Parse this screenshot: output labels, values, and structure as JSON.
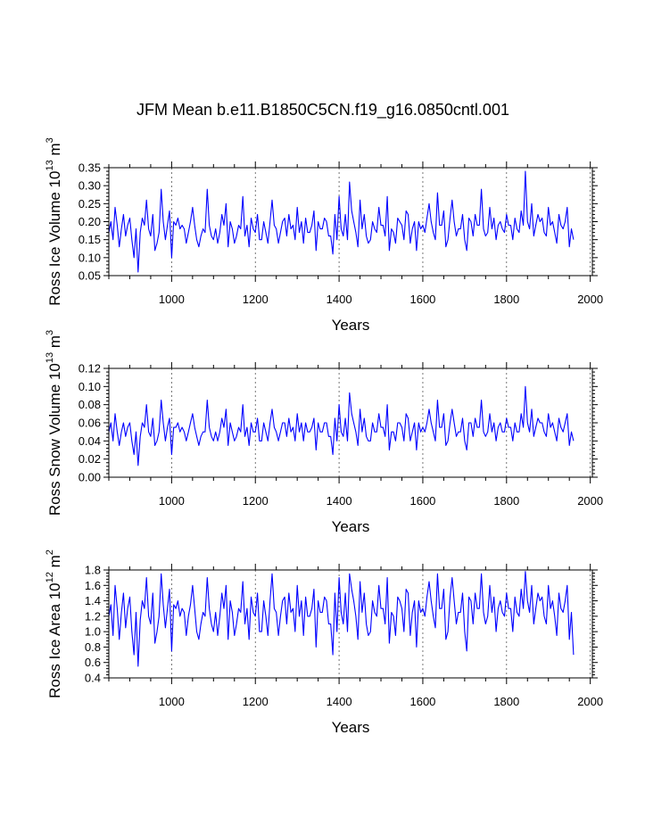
{
  "title": "JFM Mean b.e11.B1850C5CN.f19_g16.0850cntl.001",
  "chart_data": [
    {
      "type": "line",
      "panel": "ice-volume",
      "title": "JFM Mean b.e11.B1850C5CN.f19_g16.0850cntl.001",
      "xlabel": "Years",
      "ylabel_main": "Ross Ice Volume 10",
      "ylabel_exp": "13",
      "ylabel_unit": " m",
      "ylabel_unit_exp": "3",
      "xlim": [
        850,
        2005
      ],
      "ylim": [
        0.05,
        0.35
      ],
      "xticks": [
        1000,
        1200,
        1400,
        1600,
        1800,
        2000
      ],
      "xtick_labels": [
        "1000",
        "1200",
        "1400",
        "1600",
        "1800",
        "2000"
      ],
      "yticks": [
        0.05,
        0.1,
        0.15,
        0.2,
        0.25,
        0.3,
        0.35
      ],
      "ytick_labels": [
        "0.05",
        "0.10",
        "0.15",
        "0.20",
        "0.25",
        "0.30",
        "0.35"
      ],
      "x_grid": [
        1000,
        1200,
        1400,
        1600,
        1800,
        2000
      ],
      "series": [
        {
          "name": "Ross Ice Volume",
          "color": "#0000ff",
          "x_start": 850,
          "x_step": 5,
          "values": [
            0.17,
            0.2,
            0.15,
            0.24,
            0.19,
            0.13,
            0.18,
            0.22,
            0.16,
            0.19,
            0.21,
            0.15,
            0.1,
            0.18,
            0.06,
            0.17,
            0.21,
            0.19,
            0.26,
            0.18,
            0.16,
            0.22,
            0.12,
            0.14,
            0.17,
            0.29,
            0.2,
            0.15,
            0.19,
            0.23,
            0.1,
            0.2,
            0.19,
            0.21,
            0.18,
            0.19,
            0.18,
            0.14,
            0.17,
            0.2,
            0.24,
            0.19,
            0.15,
            0.13,
            0.16,
            0.18,
            0.17,
            0.29,
            0.19,
            0.16,
            0.15,
            0.18,
            0.14,
            0.17,
            0.22,
            0.19,
            0.25,
            0.13,
            0.2,
            0.18,
            0.14,
            0.16,
            0.19,
            0.18,
            0.27,
            0.16,
            0.19,
            0.13,
            0.21,
            0.18,
            0.17,
            0.22,
            0.15,
            0.15,
            0.2,
            0.17,
            0.14,
            0.2,
            0.26,
            0.19,
            0.18,
            0.14,
            0.17,
            0.2,
            0.21,
            0.16,
            0.22,
            0.18,
            0.19,
            0.15,
            0.24,
            0.17,
            0.2,
            0.14,
            0.21,
            0.17,
            0.17,
            0.19,
            0.23,
            0.12,
            0.2,
            0.18,
            0.18,
            0.21,
            0.2,
            0.16,
            0.16,
            0.11,
            0.22,
            0.15,
            0.27,
            0.18,
            0.16,
            0.22,
            0.15,
            0.31,
            0.23,
            0.2,
            0.17,
            0.13,
            0.26,
            0.18,
            0.22,
            0.16,
            0.14,
            0.15,
            0.2,
            0.18,
            0.17,
            0.24,
            0.19,
            0.19,
            0.16,
            0.27,
            0.12,
            0.18,
            0.17,
            0.14,
            0.21,
            0.2,
            0.19,
            0.15,
            0.23,
            0.22,
            0.14,
            0.18,
            0.2,
            0.12,
            0.2,
            0.18,
            0.19,
            0.17,
            0.21,
            0.25,
            0.2,
            0.17,
            0.15,
            0.28,
            0.19,
            0.19,
            0.23,
            0.13,
            0.15,
            0.21,
            0.26,
            0.2,
            0.16,
            0.18,
            0.18,
            0.22,
            0.15,
            0.12,
            0.21,
            0.2,
            0.16,
            0.22,
            0.19,
            0.19,
            0.29,
            0.18,
            0.16,
            0.17,
            0.24,
            0.18,
            0.21,
            0.15,
            0.19,
            0.2,
            0.18,
            0.17,
            0.22,
            0.19,
            0.19,
            0.15,
            0.21,
            0.18,
            0.17,
            0.23,
            0.19,
            0.34,
            0.2,
            0.18,
            0.25,
            0.16,
            0.19,
            0.22,
            0.2,
            0.21,
            0.17,
            0.16,
            0.24,
            0.19,
            0.2,
            0.17,
            0.14,
            0.22,
            0.19,
            0.18,
            0.2,
            0.24,
            0.13,
            0.18,
            0.15
          ]
        }
      ]
    },
    {
      "type": "line",
      "panel": "snow-volume",
      "xlabel": "Years",
      "ylabel_main": "Ross Snow Volume 10",
      "ylabel_exp": "13",
      "ylabel_unit": " m",
      "ylabel_unit_exp": "3",
      "xlim": [
        850,
        2005
      ],
      "ylim": [
        0.0,
        0.12
      ],
      "xticks": [
        1000,
        1200,
        1400,
        1600,
        1800,
        2000
      ],
      "xtick_labels": [
        "1000",
        "1200",
        "1400",
        "1600",
        "1800",
        "2000"
      ],
      "yticks": [
        0.0,
        0.02,
        0.04,
        0.06,
        0.08,
        0.1,
        0.12
      ],
      "ytick_labels": [
        "0.00",
        "0.02",
        "0.04",
        "0.06",
        "0.08",
        "0.10",
        "0.12"
      ],
      "x_grid": [
        1000,
        1200,
        1400,
        1600,
        1800,
        2000
      ],
      "series": [
        {
          "name": "Ross Snow Volume",
          "color": "#0000ff",
          "x_start": 850,
          "x_step": 5,
          "values": [
            0.05,
            0.06,
            0.04,
            0.07,
            0.05,
            0.035,
            0.05,
            0.06,
            0.045,
            0.055,
            0.06,
            0.04,
            0.025,
            0.05,
            0.013,
            0.045,
            0.06,
            0.055,
            0.08,
            0.05,
            0.045,
            0.065,
            0.035,
            0.04,
            0.05,
            0.085,
            0.06,
            0.04,
            0.055,
            0.065,
            0.025,
            0.055,
            0.055,
            0.06,
            0.05,
            0.055,
            0.05,
            0.04,
            0.05,
            0.06,
            0.07,
            0.055,
            0.045,
            0.035,
            0.045,
            0.05,
            0.05,
            0.085,
            0.055,
            0.045,
            0.04,
            0.05,
            0.04,
            0.05,
            0.065,
            0.055,
            0.075,
            0.035,
            0.06,
            0.05,
            0.04,
            0.045,
            0.055,
            0.05,
            0.08,
            0.045,
            0.055,
            0.035,
            0.06,
            0.05,
            0.05,
            0.065,
            0.04,
            0.04,
            0.06,
            0.05,
            0.04,
            0.06,
            0.075,
            0.055,
            0.05,
            0.04,
            0.05,
            0.06,
            0.06,
            0.045,
            0.065,
            0.05,
            0.055,
            0.04,
            0.07,
            0.05,
            0.06,
            0.04,
            0.06,
            0.05,
            0.05,
            0.055,
            0.065,
            0.03,
            0.06,
            0.05,
            0.05,
            0.06,
            0.06,
            0.045,
            0.045,
            0.025,
            0.065,
            0.04,
            0.08,
            0.05,
            0.045,
            0.065,
            0.04,
            0.093,
            0.07,
            0.06,
            0.05,
            0.035,
            0.075,
            0.05,
            0.065,
            0.045,
            0.04,
            0.04,
            0.06,
            0.05,
            0.05,
            0.07,
            0.055,
            0.055,
            0.045,
            0.08,
            0.03,
            0.05,
            0.05,
            0.04,
            0.06,
            0.06,
            0.055,
            0.04,
            0.07,
            0.065,
            0.04,
            0.05,
            0.06,
            0.03,
            0.06,
            0.05,
            0.055,
            0.05,
            0.06,
            0.075,
            0.06,
            0.05,
            0.04,
            0.085,
            0.055,
            0.055,
            0.07,
            0.035,
            0.04,
            0.06,
            0.075,
            0.06,
            0.045,
            0.05,
            0.05,
            0.065,
            0.04,
            0.03,
            0.06,
            0.06,
            0.045,
            0.065,
            0.055,
            0.055,
            0.085,
            0.05,
            0.045,
            0.05,
            0.07,
            0.05,
            0.06,
            0.04,
            0.055,
            0.06,
            0.05,
            0.05,
            0.065,
            0.055,
            0.055,
            0.04,
            0.06,
            0.05,
            0.05,
            0.07,
            0.055,
            0.1,
            0.06,
            0.05,
            0.075,
            0.045,
            0.055,
            0.065,
            0.06,
            0.06,
            0.05,
            0.045,
            0.07,
            0.055,
            0.06,
            0.05,
            0.04,
            0.065,
            0.055,
            0.05,
            0.06,
            0.07,
            0.035,
            0.05,
            0.04
          ]
        }
      ]
    },
    {
      "type": "line",
      "panel": "ice-area",
      "xlabel": "Years",
      "ylabel_main": "Ross Ice Area 10",
      "ylabel_exp": "12",
      "ylabel_unit": " m",
      "ylabel_unit_exp": "2",
      "xlim": [
        850,
        2005
      ],
      "ylim": [
        0.4,
        1.8
      ],
      "xticks": [
        1000,
        1200,
        1400,
        1600,
        1800,
        2000
      ],
      "xtick_labels": [
        "1000",
        "1200",
        "1400",
        "1600",
        "1800",
        "2000"
      ],
      "yticks": [
        0.4,
        0.6,
        0.8,
        1.0,
        1.2,
        1.4,
        1.6,
        1.8
      ],
      "ytick_labels": [
        "0.4",
        "0.6",
        "0.8",
        "1.0",
        "1.2",
        "1.4",
        "1.6",
        "1.8"
      ],
      "x_grid": [
        1000,
        1200,
        1400,
        1600,
        1800,
        2000
      ],
      "series": [
        {
          "name": "Ross Ice Area",
          "color": "#0000ff",
          "x_start": 850,
          "x_step": 5,
          "values": [
            1.2,
            1.35,
            0.95,
            1.6,
            1.3,
            0.9,
            1.25,
            1.5,
            1.05,
            1.3,
            1.45,
            1.0,
            0.7,
            1.25,
            0.55,
            1.15,
            1.4,
            1.3,
            1.7,
            1.2,
            1.1,
            1.5,
            0.85,
            1.0,
            1.2,
            1.75,
            1.35,
            1.05,
            1.3,
            1.55,
            0.75,
            1.35,
            1.3,
            1.4,
            1.2,
            1.3,
            1.25,
            0.95,
            1.2,
            1.35,
            1.6,
            1.3,
            1.0,
            0.9,
            1.1,
            1.25,
            1.2,
            1.7,
            1.3,
            1.1,
            1.0,
            1.25,
            0.95,
            1.2,
            1.5,
            1.3,
            1.6,
            0.9,
            1.4,
            1.25,
            0.95,
            1.1,
            1.3,
            1.25,
            1.65,
            1.1,
            1.3,
            0.9,
            1.45,
            1.25,
            1.2,
            1.5,
            1.0,
            1.0,
            1.4,
            1.2,
            0.95,
            1.4,
            1.75,
            1.3,
            1.25,
            0.95,
            1.2,
            1.4,
            1.45,
            1.1,
            1.5,
            1.25,
            1.3,
            1.0,
            1.6,
            1.2,
            1.4,
            0.95,
            1.45,
            1.2,
            1.2,
            1.3,
            1.55,
            0.8,
            1.4,
            1.25,
            1.25,
            1.45,
            1.4,
            1.1,
            1.1,
            0.7,
            1.5,
            1.0,
            1.7,
            1.25,
            1.1,
            1.5,
            1.0,
            1.75,
            1.55,
            1.4,
            1.2,
            0.9,
            1.65,
            1.25,
            1.5,
            1.1,
            0.95,
            1.0,
            1.4,
            1.25,
            1.2,
            1.6,
            1.3,
            1.3,
            1.1,
            1.7,
            0.85,
            1.25,
            1.2,
            0.95,
            1.45,
            1.4,
            1.3,
            1.0,
            1.55,
            1.5,
            0.95,
            1.25,
            1.4,
            0.8,
            1.4,
            1.25,
            1.3,
            1.2,
            1.45,
            1.65,
            1.4,
            1.2,
            1.05,
            1.75,
            1.3,
            1.3,
            1.55,
            0.9,
            1.0,
            1.45,
            1.7,
            1.4,
            1.1,
            1.25,
            1.25,
            1.5,
            1.0,
            0.75,
            1.45,
            1.4,
            1.1,
            1.5,
            1.3,
            1.3,
            1.75,
            1.25,
            1.1,
            1.2,
            1.6,
            1.25,
            1.45,
            1.0,
            1.3,
            1.4,
            1.25,
            1.2,
            1.5,
            1.3,
            1.3,
            1.0,
            1.45,
            1.25,
            1.2,
            1.55,
            1.3,
            1.78,
            1.4,
            1.25,
            1.6,
            1.1,
            1.3,
            1.5,
            1.4,
            1.45,
            1.2,
            1.1,
            1.6,
            1.3,
            1.4,
            1.2,
            0.95,
            1.5,
            1.3,
            1.25,
            1.4,
            1.6,
            0.9,
            1.25,
            0.7
          ]
        }
      ]
    }
  ]
}
